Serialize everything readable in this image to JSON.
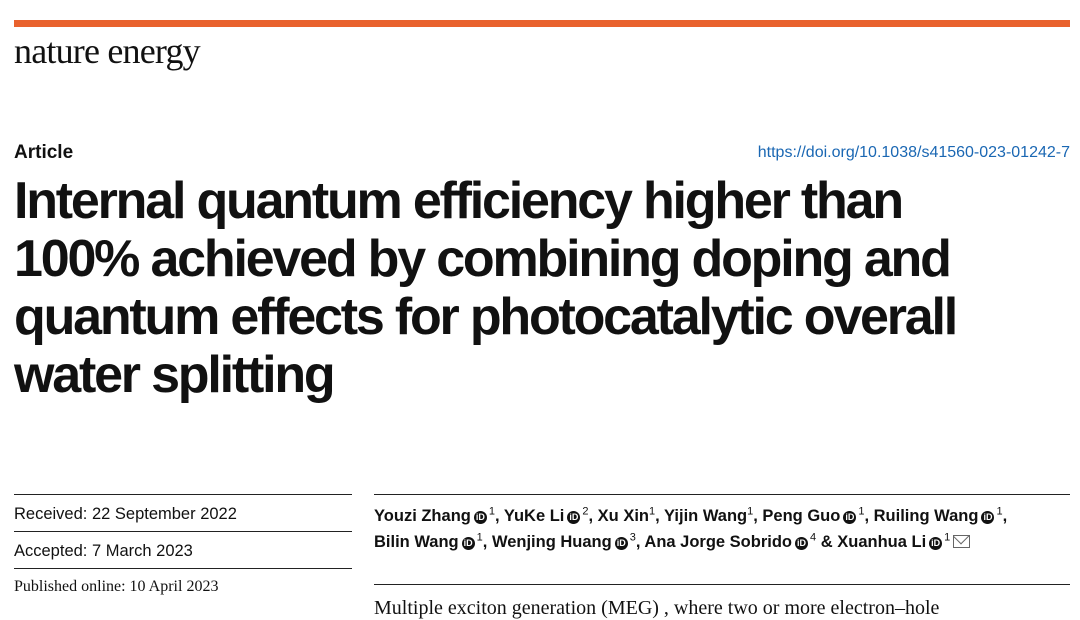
{
  "header": {
    "journal": "nature energy",
    "brand_color": "#e9622e",
    "article_type": "Article",
    "doi": "https://doi.org/10.1038/s41560-023-01242-7"
  },
  "title_lines": [
    "Internal quantum efficiency higher than",
    "100% achieved by combining doping and",
    "quantum effects for photocatalytic overall",
    "water splitting"
  ],
  "dates": {
    "received": "Received: 22 September 2022",
    "accepted": "Accepted: 7 March 2023",
    "published": "Published online: 10 April 2023"
  },
  "authors": [
    {
      "name": "Youzi Zhang",
      "orcid": true,
      "aff": "1",
      "sep": ", "
    },
    {
      "name": "YuKe Li",
      "orcid": true,
      "aff": "2",
      "sep": ", "
    },
    {
      "name": "Xu Xin",
      "orcid": false,
      "aff": "1",
      "sep": ", "
    },
    {
      "name": "Yijin Wang",
      "orcid": false,
      "aff": "1",
      "sep": ", "
    },
    {
      "name": "Peng Guo",
      "orcid": true,
      "aff": "1",
      "sep": ", "
    },
    {
      "name": "Ruiling Wang",
      "orcid": true,
      "aff": "1",
      "sep": ", "
    },
    {
      "name": "Bilin Wang",
      "orcid": true,
      "aff": "1",
      "sep": ", "
    },
    {
      "name": "Wenjing Huang",
      "orcid": true,
      "aff": "3",
      "sep": ", "
    },
    {
      "name": "Ana Jorge Sobrido",
      "orcid": true,
      "aff": "4",
      "sep": " & "
    },
    {
      "name": "Xuanhua Li",
      "orcid": true,
      "aff": "1",
      "sep": "",
      "corresponding": true
    }
  ],
  "abstract_start": "Multiple exciton generation (MEG) , where two or more electron–hole"
}
